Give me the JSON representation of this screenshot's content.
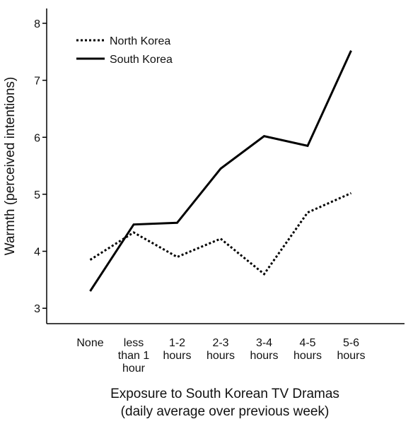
{
  "chart_data": {
    "type": "line",
    "ylabel": "Warmth (perceived intentions)",
    "xlabel": "Exposure to South Korean TV Dramas\n(daily average over previous week)",
    "categories": [
      "None",
      "less\nthan 1\nhour",
      "1-2\nhours",
      "2-3\nhours",
      "3-4\nhours",
      "4-5\nhours",
      "5-6\nhours"
    ],
    "series": [
      {
        "name": "North Korea",
        "color": "#000000",
        "dash": "dotted",
        "values": [
          3.85,
          4.33,
          3.9,
          4.22,
          3.6,
          4.68,
          5.02
        ]
      },
      {
        "name": "South Korea",
        "color": "#000000",
        "dash": "solid",
        "values": [
          3.3,
          4.47,
          4.5,
          5.45,
          6.02,
          5.85,
          7.52
        ]
      }
    ],
    "ylim": [
      2.73,
      8.26
    ],
    "yticks": [
      3,
      4,
      5,
      6,
      7,
      8
    ],
    "legend": "upper left"
  }
}
